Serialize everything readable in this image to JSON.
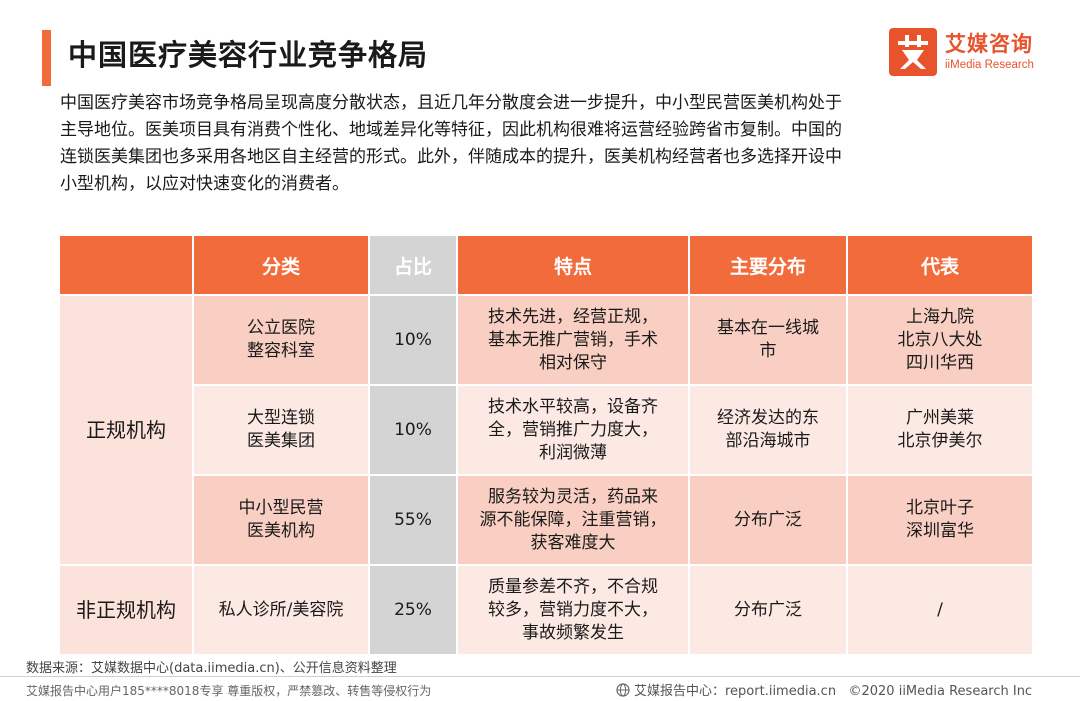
{
  "header": {
    "title": "中国医疗美容行业竞争格局",
    "logo_cn": "艾媒咨询",
    "logo_en": "iiMedia Research"
  },
  "intro": [
    "中国医疗美容市场竞争格局呈现高度分散状态，且近几年分散度会进一步提升，中小型民营医美机构处于",
    "主导地位。医美项目具有消费个性化、地域差异化等特征，因此机构很难将运营经验跨省市复制。中国的",
    "连锁医美集团也多采用各地区自主经营的形式。此外，伴随成本的提升，医美机构经营者也多选择开设中",
    "小型机构，以应对快速变化的消费者。"
  ],
  "table": {
    "headers": [
      "",
      "分类",
      "占比",
      "特点",
      "主要分布",
      "代表"
    ],
    "groups": {
      "regular": "正规机构",
      "informal": "非正规机构"
    },
    "rows": [
      {
        "category": [
          "公立医院",
          "整容科室"
        ],
        "ratio": "10%",
        "features": [
          "技术先进，经营正规，",
          "基本无推广营销，手术",
          "相对保守"
        ],
        "distribution": [
          "基本在一线城",
          "市"
        ],
        "representatives": [
          "上海九院",
          "北京八大处",
          "四川华西"
        ]
      },
      {
        "category": [
          "大型连锁",
          "医美集团"
        ],
        "ratio": "10%",
        "features": [
          "技术水平较高，设备齐",
          "全，营销推广力度大，",
          "利润微薄"
        ],
        "distribution": [
          "经济发达的东",
          "部沿海城市"
        ],
        "representatives": [
          "广州美莱",
          "北京伊美尔"
        ]
      },
      {
        "category": [
          "中小型民营",
          "医美机构"
        ],
        "ratio": "55%",
        "features": [
          "服务较为灵活，药品来",
          "源不能保障，注重营销，",
          "获客难度大"
        ],
        "distribution": [
          "分布广泛"
        ],
        "representatives": [
          "北京叶子",
          "深圳富华"
        ]
      },
      {
        "category": [
          "私人诊所/美容院"
        ],
        "ratio": "25%",
        "features": [
          "质量参差不齐，不合规",
          "较多，营销力度不大，",
          "事故频繁发生"
        ],
        "distribution": [
          "分布广泛"
        ],
        "representatives": [
          "/"
        ]
      }
    ]
  },
  "footer": {
    "source": "数据来源：艾媒数据中心(data.iimedia.cn)、公开信息资料整理",
    "copyright_notice": "艾媒报告中心用户185****8018专享 尊重版权，严禁篡改、转售等侵权行为",
    "site": "艾媒报告中心：report.iimedia.cn",
    "copyright": "©2020  iiMedia Research  Inc"
  },
  "colors": {
    "accent": "#f26b3a",
    "header_gray": "#d4d4d4",
    "row_dark": "#f8cfc2",
    "row_light": "#fde9e3"
  }
}
